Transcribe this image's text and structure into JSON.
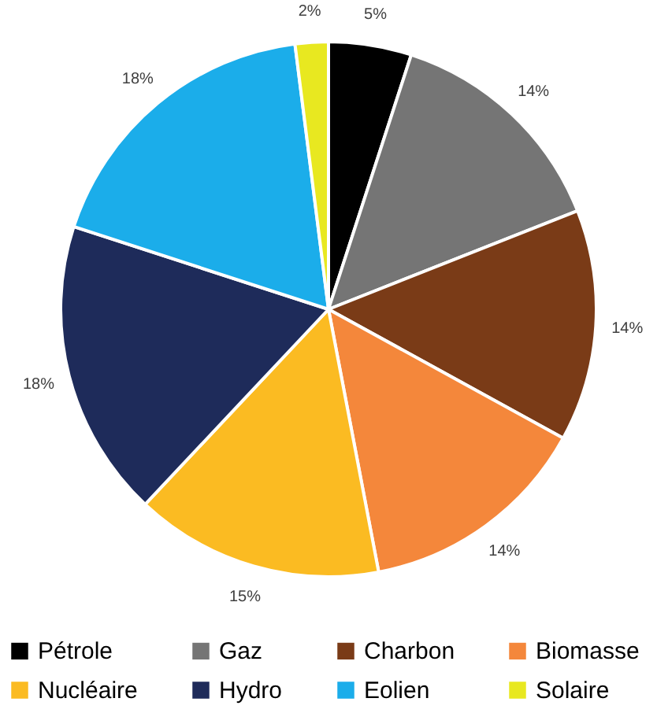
{
  "chart_data": {
    "type": "pie",
    "categories": [
      "Pétrole",
      "Gaz",
      "Charbon",
      "Biomasse",
      "Nucléaire",
      "Hydro",
      "Eolien",
      "Solaire"
    ],
    "values": [
      5,
      14,
      14,
      14,
      15,
      18,
      18,
      2
    ],
    "value_labels": [
      "5%",
      "14%",
      "14%",
      "14%",
      "15%",
      "18%",
      "18%",
      "2%"
    ],
    "colors": [
      "#000000",
      "#757575",
      "#7a3b17",
      "#f4873b",
      "#fbbb22",
      "#1e2b5a",
      "#1badea",
      "#e8e820"
    ],
    "legend": "bottom"
  }
}
